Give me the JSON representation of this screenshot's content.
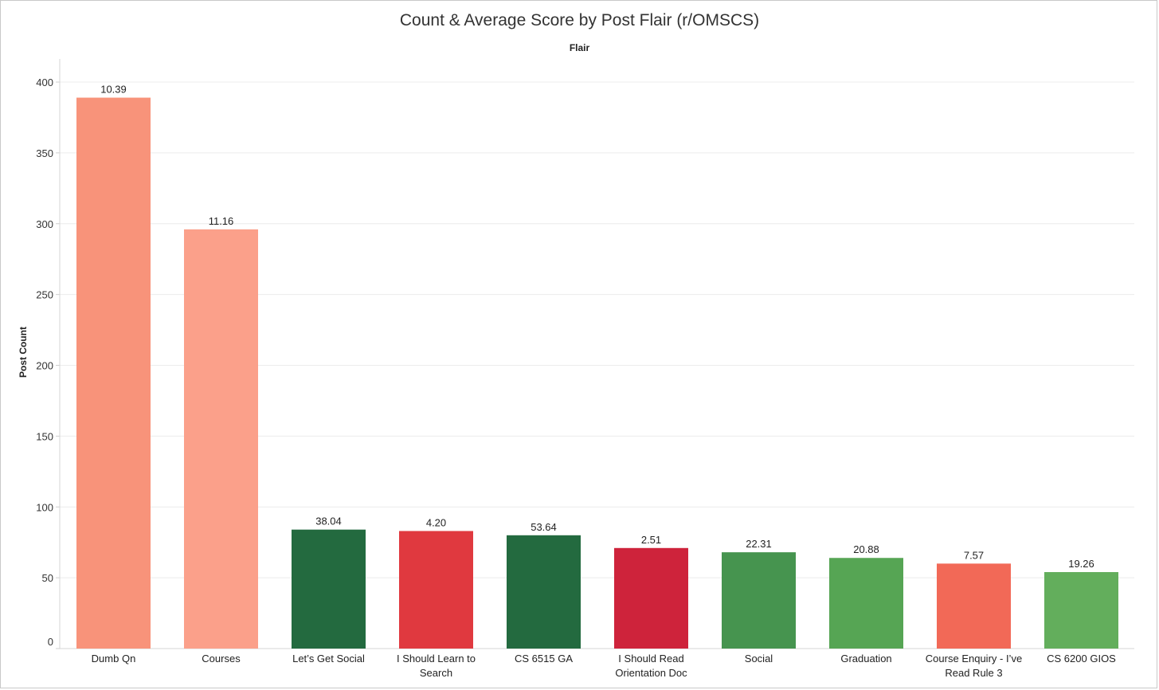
{
  "chart_data": {
    "type": "bar",
    "title": "Count & Average Score by Post Flair (r/OMSCS)",
    "column_header": "Flair",
    "ylabel": "Post Count",
    "ylim": [
      0,
      400
    ],
    "yticks": [
      0,
      50,
      100,
      150,
      200,
      250,
      300,
      350,
      400
    ],
    "grid": true,
    "categories": [
      "Dumb Qn",
      "Courses",
      "Let’s Get Social",
      "I Should Learn to Search",
      "CS 6515 GA",
      "I Should Read Orientation Doc",
      "Social",
      "Graduation",
      "Course Enquiry - I’ve Read Rule 3",
      "CS 6200 GIOS"
    ],
    "category_lines": [
      [
        "Dumb Qn"
      ],
      [
        "Courses"
      ],
      [
        "Let’s Get Social"
      ],
      [
        "I Should Learn to",
        "Search"
      ],
      [
        "CS 6515 GA"
      ],
      [
        "I Should Read",
        "Orientation Doc"
      ],
      [
        "Social"
      ],
      [
        "Graduation"
      ],
      [
        "Course Enquiry - I’ve",
        "Read Rule 3"
      ],
      [
        "CS 6200 GIOS"
      ]
    ],
    "values": [
      389,
      296,
      84,
      83,
      80,
      71,
      68,
      64,
      60,
      54
    ],
    "average_scores": [
      "10.39",
      "11.16",
      "38.04",
      "4.20",
      "53.64",
      "2.51",
      "22.31",
      "20.88",
      "7.57",
      "19.26"
    ],
    "colors": [
      "#f8937a",
      "#fba08a",
      "#236a3f",
      "#e0393f",
      "#236a3f",
      "#ce233b",
      "#46944f",
      "#56a554",
      "#f26957",
      "#63ae5c"
    ]
  }
}
